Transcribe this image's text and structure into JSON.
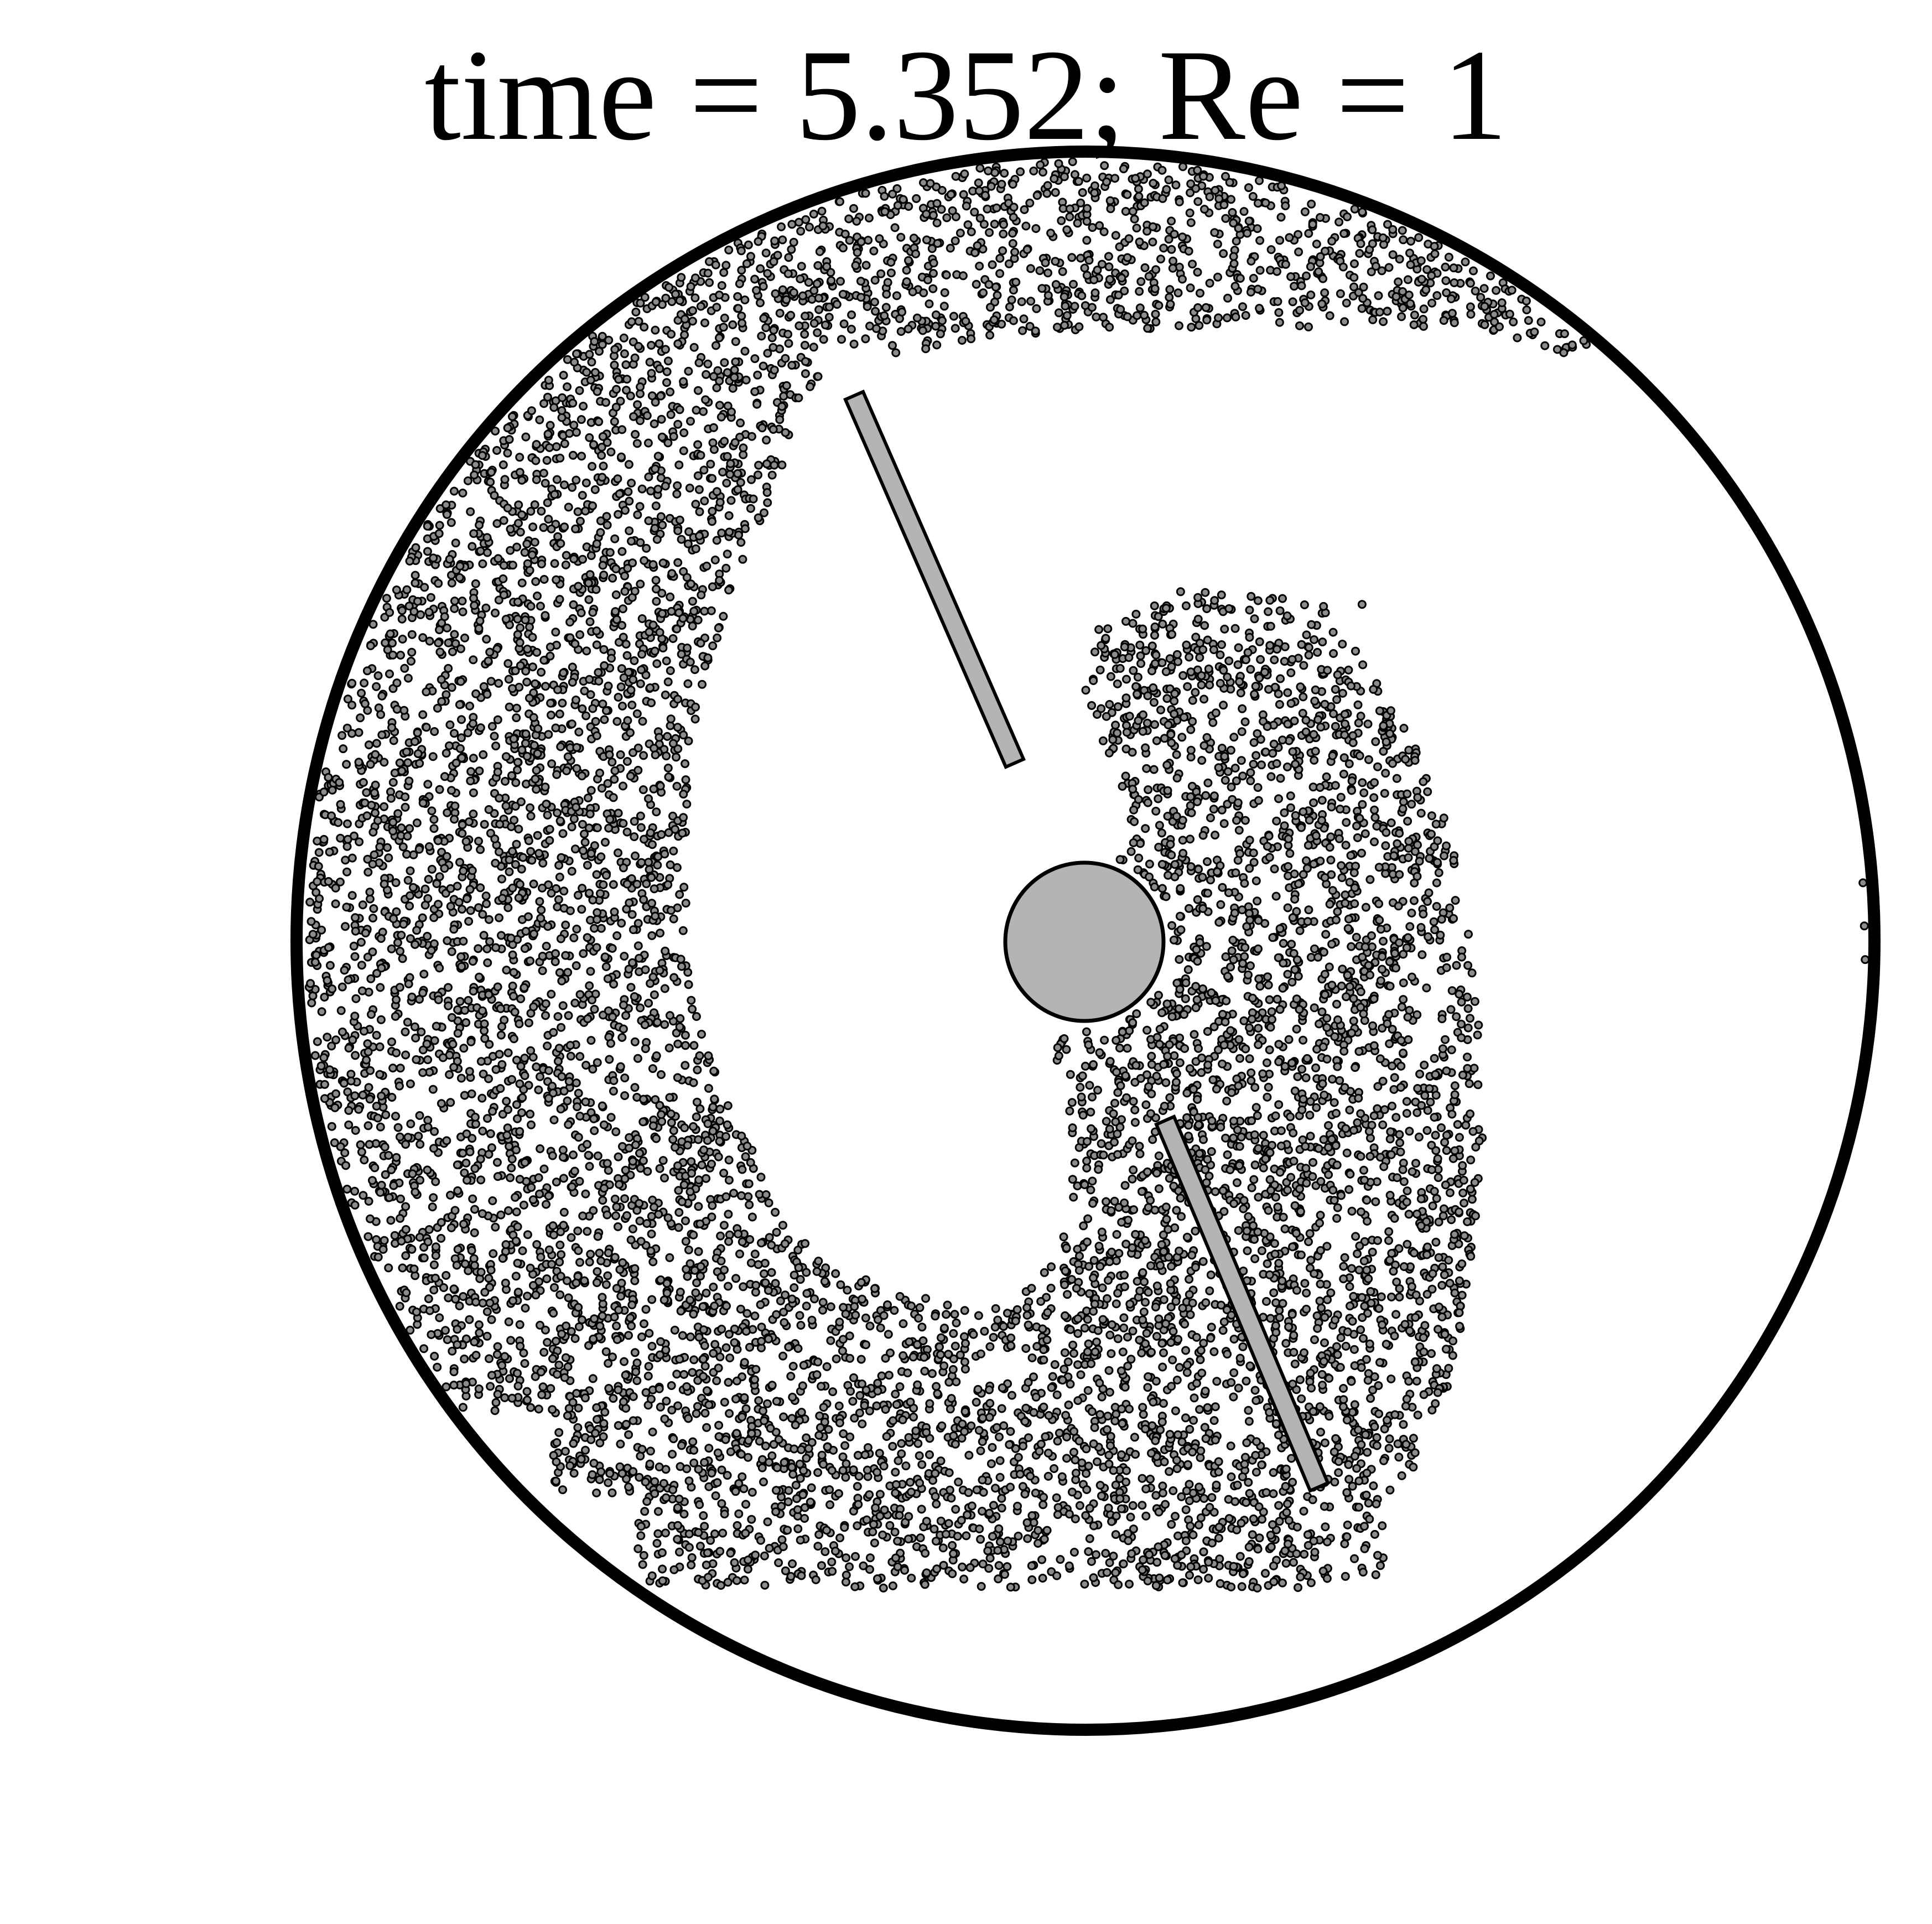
{
  "title": "time = 5.352; Re = 1",
  "colors": {
    "background": "#ffffff",
    "outline": "#000000",
    "rod_fill": "#b4b4b4",
    "hub_fill": "#b4b4b4",
    "particle_fill": "#8c8c8c",
    "particle_stroke": "#000000"
  },
  "icons": {
    "outer_boundary": "large-circle-outline",
    "central_hub": "filled-gray-circle",
    "stirring_rods": "gray-rectangle-rods",
    "tracer_particles": "small-dot-markers"
  }
}
